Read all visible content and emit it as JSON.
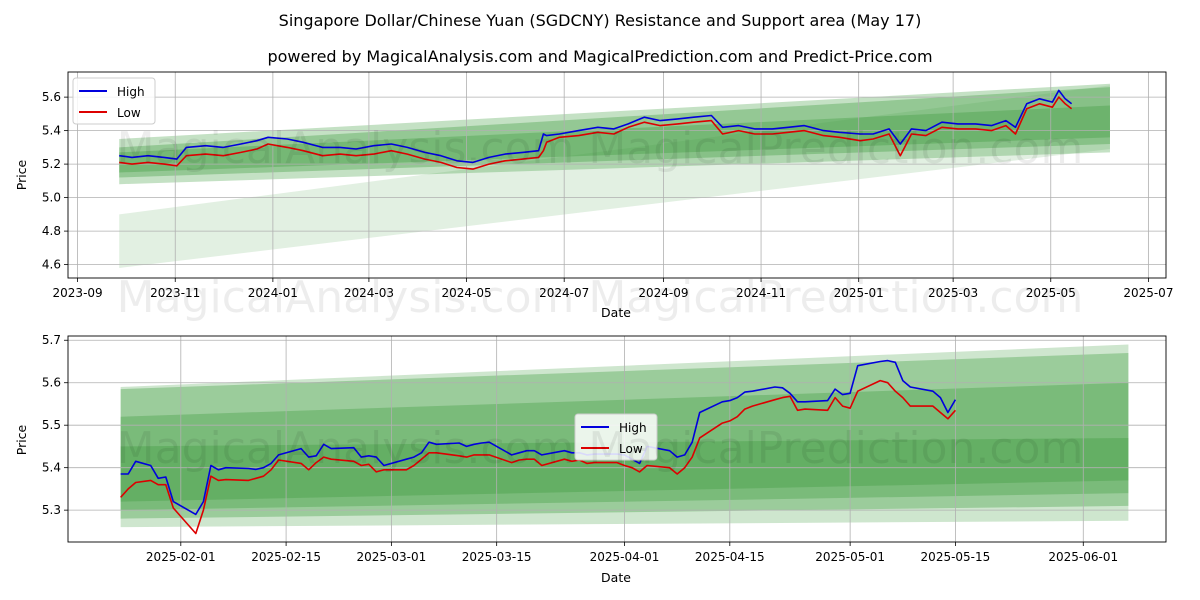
{
  "title": "Singapore Dollar/Chinese Yuan (SGDCNY) Resistance and Support area (May 17)",
  "subtitle": "powered by MagicalAnalysis.com and MagicalPrediction.com and Predict-Price.com",
  "watermark": "MagicalAnalysis.com    MagicalPrediction.com",
  "colors": {
    "high": "#0000dd",
    "low": "#dd0000",
    "band": "#3c9c3c",
    "grid": "#b0b0b0"
  },
  "chart_data": [
    {
      "type": "line",
      "title": "",
      "xlabel": "Date",
      "ylabel": "Price",
      "ylim": [
        4.52,
        5.75
      ],
      "xlim": [
        "2023-08-26",
        "2025-07-12"
      ],
      "xticks": [
        "2023-09",
        "2023-11",
        "2024-01",
        "2024-03",
        "2024-05",
        "2024-07",
        "2024-09",
        "2024-11",
        "2025-01",
        "2025-03",
        "2025-05",
        "2025-07"
      ],
      "yticks": [
        "4.6",
        "4.8",
        "5.0",
        "5.2",
        "5.4",
        "5.6"
      ],
      "legend": {
        "position": "top-left",
        "entries": [
          "High",
          "Low"
        ]
      },
      "bands": [
        {
          "x": [
            "2023-09-27",
            "2025-06-07"
          ],
          "upper": [
            4.9,
            5.67
          ],
          "lower": [
            4.58,
            5.29
          ],
          "opacity": 0.15
        },
        {
          "x": [
            "2023-09-27",
            "2025-06-07"
          ],
          "upper": [
            5.35,
            5.68
          ],
          "lower": [
            5.08,
            5.27
          ],
          "opacity": 0.3
        },
        {
          "x": [
            "2023-09-27",
            "2025-06-07"
          ],
          "upper": [
            5.3,
            5.66
          ],
          "lower": [
            5.12,
            5.32
          ],
          "opacity": 0.35
        },
        {
          "x": [
            "2023-09-27",
            "2025-06-07"
          ],
          "upper": [
            5.27,
            5.55
          ],
          "lower": [
            5.15,
            5.36
          ],
          "opacity": 0.35
        }
      ],
      "series": [
        {
          "name": "High",
          "x": [
            "2023-09-27",
            "2023-10-05",
            "2023-10-15",
            "2023-10-25",
            "2023-11-02",
            "2023-11-08",
            "2023-11-20",
            "2023-12-01",
            "2023-12-12",
            "2023-12-22",
            "2023-12-29",
            "2024-01-10",
            "2024-01-20",
            "2024-02-01",
            "2024-02-12",
            "2024-02-22",
            "2024-03-04",
            "2024-03-15",
            "2024-03-25",
            "2024-04-05",
            "2024-04-15",
            "2024-04-25",
            "2024-05-05",
            "2024-05-15",
            "2024-05-25",
            "2024-06-05",
            "2024-06-15",
            "2024-06-18",
            "2024-06-20",
            "2024-06-28",
            "2024-07-10",
            "2024-07-22",
            "2024-08-01",
            "2024-08-10",
            "2024-08-20",
            "2024-08-30",
            "2024-09-10",
            "2024-09-20",
            "2024-10-01",
            "2024-10-08",
            "2024-10-18",
            "2024-10-28",
            "2024-11-08",
            "2024-11-18",
            "2024-11-28",
            "2024-12-10",
            "2024-12-20",
            "2025-01-02",
            "2025-01-10",
            "2025-01-20",
            "2025-01-27",
            "2025-02-03",
            "2025-02-12",
            "2025-02-22",
            "2025-03-04",
            "2025-03-15",
            "2025-03-25",
            "2025-04-03",
            "2025-04-09",
            "2025-04-16",
            "2025-04-24",
            "2025-05-02",
            "2025-05-06",
            "2025-05-10",
            "2025-05-14"
          ],
          "values": [
            5.25,
            5.24,
            5.25,
            5.24,
            5.23,
            5.3,
            5.31,
            5.3,
            5.32,
            5.34,
            5.36,
            5.35,
            5.33,
            5.3,
            5.3,
            5.29,
            5.31,
            5.32,
            5.3,
            5.27,
            5.25,
            5.22,
            5.21,
            5.24,
            5.26,
            5.27,
            5.28,
            5.38,
            5.37,
            5.38,
            5.4,
            5.42,
            5.41,
            5.44,
            5.48,
            5.46,
            5.47,
            5.48,
            5.49,
            5.42,
            5.43,
            5.41,
            5.41,
            5.42,
            5.43,
            5.4,
            5.39,
            5.38,
            5.38,
            5.41,
            5.32,
            5.41,
            5.4,
            5.45,
            5.44,
            5.44,
            5.43,
            5.46,
            5.42,
            5.56,
            5.59,
            5.57,
            5.64,
            5.59,
            5.56
          ]
        },
        {
          "name": "Low",
          "x": [
            "2023-09-27",
            "2023-10-05",
            "2023-10-15",
            "2023-10-25",
            "2023-11-02",
            "2023-11-08",
            "2023-11-20",
            "2023-12-01",
            "2023-12-12",
            "2023-12-22",
            "2023-12-29",
            "2024-01-10",
            "2024-01-20",
            "2024-02-01",
            "2024-02-12",
            "2024-02-22",
            "2024-03-04",
            "2024-03-15",
            "2024-03-25",
            "2024-04-05",
            "2024-04-15",
            "2024-04-25",
            "2024-05-05",
            "2024-05-15",
            "2024-05-25",
            "2024-06-05",
            "2024-06-15",
            "2024-06-18",
            "2024-06-20",
            "2024-06-28",
            "2024-07-10",
            "2024-07-22",
            "2024-08-01",
            "2024-08-10",
            "2024-08-20",
            "2024-08-30",
            "2024-09-10",
            "2024-09-20",
            "2024-10-01",
            "2024-10-08",
            "2024-10-18",
            "2024-10-28",
            "2024-11-08",
            "2024-11-18",
            "2024-11-28",
            "2024-12-10",
            "2024-12-20",
            "2025-01-02",
            "2025-01-10",
            "2025-01-20",
            "2025-01-27",
            "2025-02-03",
            "2025-02-12",
            "2025-02-22",
            "2025-03-04",
            "2025-03-15",
            "2025-03-25",
            "2025-04-03",
            "2025-04-09",
            "2025-04-16",
            "2025-04-24",
            "2025-05-02",
            "2025-05-06",
            "2025-05-10",
            "2025-05-14"
          ],
          "values": [
            5.21,
            5.2,
            5.21,
            5.2,
            5.19,
            5.25,
            5.26,
            5.25,
            5.27,
            5.29,
            5.32,
            5.3,
            5.28,
            5.25,
            5.26,
            5.25,
            5.26,
            5.28,
            5.26,
            5.23,
            5.21,
            5.18,
            5.17,
            5.2,
            5.22,
            5.23,
            5.24,
            5.28,
            5.33,
            5.36,
            5.37,
            5.39,
            5.38,
            5.42,
            5.45,
            5.43,
            5.44,
            5.45,
            5.46,
            5.38,
            5.4,
            5.38,
            5.38,
            5.39,
            5.4,
            5.37,
            5.36,
            5.34,
            5.35,
            5.38,
            5.25,
            5.38,
            5.37,
            5.42,
            5.41,
            5.41,
            5.4,
            5.43,
            5.38,
            5.53,
            5.56,
            5.54,
            5.6,
            5.56,
            5.53
          ]
        }
      ]
    },
    {
      "type": "line",
      "title": "",
      "xlabel": "Date",
      "ylabel": "Price",
      "ylim": [
        5.225,
        5.71
      ],
      "xlim": [
        "2025-01-17",
        "2025-06-12"
      ],
      "xticks": [
        "2025-02-01",
        "2025-02-15",
        "2025-03-01",
        "2025-03-15",
        "2025-04-01",
        "2025-04-15",
        "2025-05-01",
        "2025-05-15",
        "2025-06-01"
      ],
      "yticks": [
        "5.3",
        "5.4",
        "5.5",
        "5.6",
        "5.7"
      ],
      "legend": {
        "position": "center",
        "entries": [
          "High",
          "Low"
        ]
      },
      "bands": [
        {
          "x": [
            "2025-01-24",
            "2025-06-07"
          ],
          "upper": [
            5.59,
            5.69
          ],
          "lower": [
            5.26,
            5.275
          ],
          "opacity": 0.25
        },
        {
          "x": [
            "2025-01-24",
            "2025-06-07"
          ],
          "upper": [
            5.585,
            5.67
          ],
          "lower": [
            5.28,
            5.31
          ],
          "opacity": 0.35
        },
        {
          "x": [
            "2025-01-24",
            "2025-06-07"
          ],
          "upper": [
            5.52,
            5.6
          ],
          "lower": [
            5.3,
            5.34
          ],
          "opacity": 0.35
        },
        {
          "x": [
            "2025-01-24",
            "2025-06-07"
          ],
          "upper": [
            5.45,
            5.47
          ],
          "lower": [
            5.32,
            5.37
          ],
          "opacity": 0.35
        }
      ],
      "series": [
        {
          "name": "High",
          "x": [
            "2025-01-24",
            "2025-01-25",
            "2025-01-26",
            "2025-01-28",
            "2025-01-29",
            "2025-01-30",
            "2025-01-31",
            "2025-02-03",
            "2025-02-04",
            "2025-02-05",
            "2025-02-06",
            "2025-02-07",
            "2025-02-10",
            "2025-02-11",
            "2025-02-12",
            "2025-02-13",
            "2025-02-14",
            "2025-02-17",
            "2025-02-18",
            "2025-02-19",
            "2025-02-20",
            "2025-02-21",
            "2025-02-24",
            "2025-02-25",
            "2025-02-26",
            "2025-02-27",
            "2025-02-28",
            "2025-03-03",
            "2025-03-04",
            "2025-03-05",
            "2025-03-06",
            "2025-03-07",
            "2025-03-10",
            "2025-03-11",
            "2025-03-12",
            "2025-03-13",
            "2025-03-14",
            "2025-03-17",
            "2025-03-18",
            "2025-03-19",
            "2025-03-20",
            "2025-03-21",
            "2025-03-24",
            "2025-03-25",
            "2025-03-26",
            "2025-03-27",
            "2025-03-28",
            "2025-03-31",
            "2025-04-01",
            "2025-04-02",
            "2025-04-03",
            "2025-04-04",
            "2025-04-07",
            "2025-04-08",
            "2025-04-09",
            "2025-04-10",
            "2025-04-11",
            "2025-04-14",
            "2025-04-15",
            "2025-04-16",
            "2025-04-17",
            "2025-04-18",
            "2025-04-21",
            "2025-04-22",
            "2025-04-23",
            "2025-04-24",
            "2025-04-25",
            "2025-04-28",
            "2025-04-29",
            "2025-04-30",
            "2025-05-01",
            "2025-05-02",
            "2025-05-05",
            "2025-05-06",
            "2025-05-07",
            "2025-05-08",
            "2025-05-09",
            "2025-05-12",
            "2025-05-13",
            "2025-05-14",
            "2025-05-15"
          ],
          "values": [
            5.385,
            5.385,
            5.415,
            5.405,
            5.375,
            5.378,
            5.32,
            5.29,
            5.32,
            5.405,
            5.395,
            5.4,
            5.398,
            5.396,
            5.4,
            5.41,
            5.43,
            5.445,
            5.425,
            5.428,
            5.455,
            5.445,
            5.447,
            5.425,
            5.428,
            5.425,
            5.405,
            5.42,
            5.425,
            5.435,
            5.46,
            5.455,
            5.458,
            5.45,
            5.455,
            5.458,
            5.46,
            5.43,
            5.435,
            5.44,
            5.44,
            5.43,
            5.44,
            5.435,
            5.435,
            5.43,
            5.432,
            5.432,
            5.43,
            5.42,
            5.41,
            5.45,
            5.44,
            5.425,
            5.43,
            5.46,
            5.53,
            5.555,
            5.558,
            5.565,
            5.578,
            5.58,
            5.59,
            5.588,
            5.575,
            5.555,
            5.555,
            5.558,
            5.585,
            5.572,
            5.575,
            5.64,
            5.65,
            5.652,
            5.648,
            5.605,
            5.59,
            5.58,
            5.565,
            5.53,
            5.56
          ]
        },
        {
          "name": "Low",
          "x": [
            "2025-01-24",
            "2025-01-25",
            "2025-01-26",
            "2025-01-28",
            "2025-01-29",
            "2025-01-30",
            "2025-01-31",
            "2025-02-03",
            "2025-02-04",
            "2025-02-05",
            "2025-02-06",
            "2025-02-07",
            "2025-02-10",
            "2025-02-11",
            "2025-02-12",
            "2025-02-13",
            "2025-02-14",
            "2025-02-17",
            "2025-02-18",
            "2025-02-19",
            "2025-02-20",
            "2025-02-21",
            "2025-02-24",
            "2025-02-25",
            "2025-02-26",
            "2025-02-27",
            "2025-02-28",
            "2025-03-03",
            "2025-03-04",
            "2025-03-05",
            "2025-03-06",
            "2025-03-07",
            "2025-03-10",
            "2025-03-11",
            "2025-03-12",
            "2025-03-13",
            "2025-03-14",
            "2025-03-17",
            "2025-03-18",
            "2025-03-19",
            "2025-03-20",
            "2025-03-21",
            "2025-03-24",
            "2025-03-25",
            "2025-03-26",
            "2025-03-27",
            "2025-03-28",
            "2025-03-31",
            "2025-04-01",
            "2025-04-02",
            "2025-04-03",
            "2025-04-04",
            "2025-04-07",
            "2025-04-08",
            "2025-04-09",
            "2025-04-10",
            "2025-04-11",
            "2025-04-14",
            "2025-04-15",
            "2025-04-16",
            "2025-04-17",
            "2025-04-18",
            "2025-04-21",
            "2025-04-22",
            "2025-04-23",
            "2025-04-24",
            "2025-04-25",
            "2025-04-28",
            "2025-04-29",
            "2025-04-30",
            "2025-05-01",
            "2025-05-02",
            "2025-05-05",
            "2025-05-06",
            "2025-05-07",
            "2025-05-08",
            "2025-05-09",
            "2025-05-12",
            "2025-05-13",
            "2025-05-14",
            "2025-05-15"
          ],
          "values": [
            5.33,
            5.35,
            5.365,
            5.37,
            5.36,
            5.36,
            5.305,
            5.245,
            5.3,
            5.38,
            5.37,
            5.372,
            5.37,
            5.375,
            5.38,
            5.395,
            5.418,
            5.41,
            5.395,
            5.412,
            5.425,
            5.42,
            5.415,
            5.405,
            5.408,
            5.39,
            5.395,
            5.395,
            5.405,
            5.42,
            5.435,
            5.435,
            5.428,
            5.425,
            5.43,
            5.43,
            5.43,
            5.412,
            5.418,
            5.42,
            5.42,
            5.405,
            5.42,
            5.415,
            5.418,
            5.41,
            5.412,
            5.412,
            5.405,
            5.4,
            5.39,
            5.405,
            5.4,
            5.385,
            5.4,
            5.425,
            5.47,
            5.505,
            5.51,
            5.52,
            5.538,
            5.545,
            5.56,
            5.565,
            5.568,
            5.535,
            5.538,
            5.535,
            5.565,
            5.545,
            5.54,
            5.58,
            5.605,
            5.6,
            5.58,
            5.565,
            5.545,
            5.545,
            5.53,
            5.515,
            5.535
          ]
        }
      ]
    }
  ]
}
